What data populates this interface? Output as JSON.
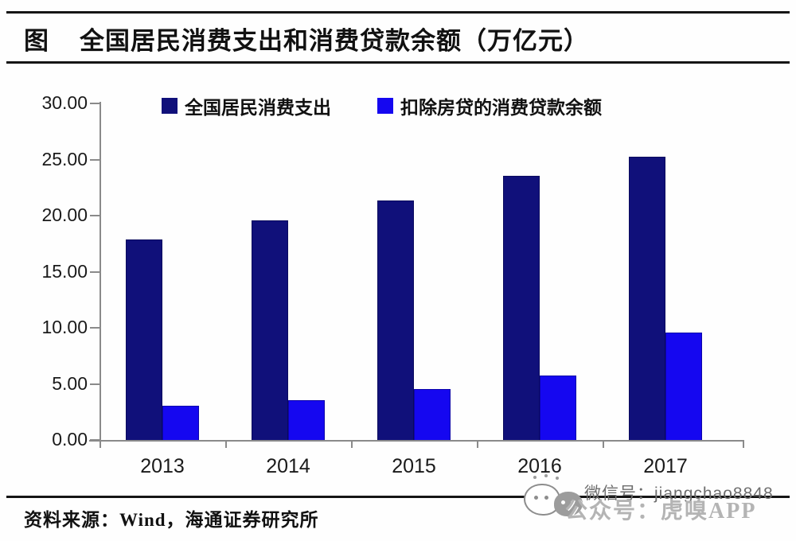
{
  "header": {
    "fig_label": "图",
    "title": "全国居民消费支出和消费贷款余额（万亿元）"
  },
  "chart_data": {
    "type": "bar",
    "title": "全国居民消费支出和消费贷款余额（万亿元）",
    "unit": "万亿元",
    "categories": [
      "2013",
      "2014",
      "2015",
      "2016",
      "2017"
    ],
    "series": [
      {
        "name": "全国居民消费支出",
        "color": "#10107a",
        "values": [
          18.0,
          19.7,
          21.5,
          23.7,
          25.4
        ]
      },
      {
        "name": "扣除房贷的消费贷款余额",
        "color": "#1507f0",
        "values": [
          3.2,
          3.7,
          4.7,
          5.9,
          9.7
        ]
      }
    ],
    "ylim": [
      0,
      30
    ],
    "ytick_step": 5,
    "ytick_labels": [
      "0.00",
      "5.00",
      "10.00",
      "15.00",
      "20.00",
      "25.00",
      "30.00"
    ],
    "legend_position": "top",
    "grid": false,
    "axis_color": "#8a8a8a"
  },
  "footer": {
    "source": "资料来源：Wind，海通证券研究所"
  },
  "watermark": {
    "line1": "微信号：jiangchao8848",
    "line2": "公众号：虎嗅APP",
    "icon": "wechat-bubbles-icon"
  }
}
